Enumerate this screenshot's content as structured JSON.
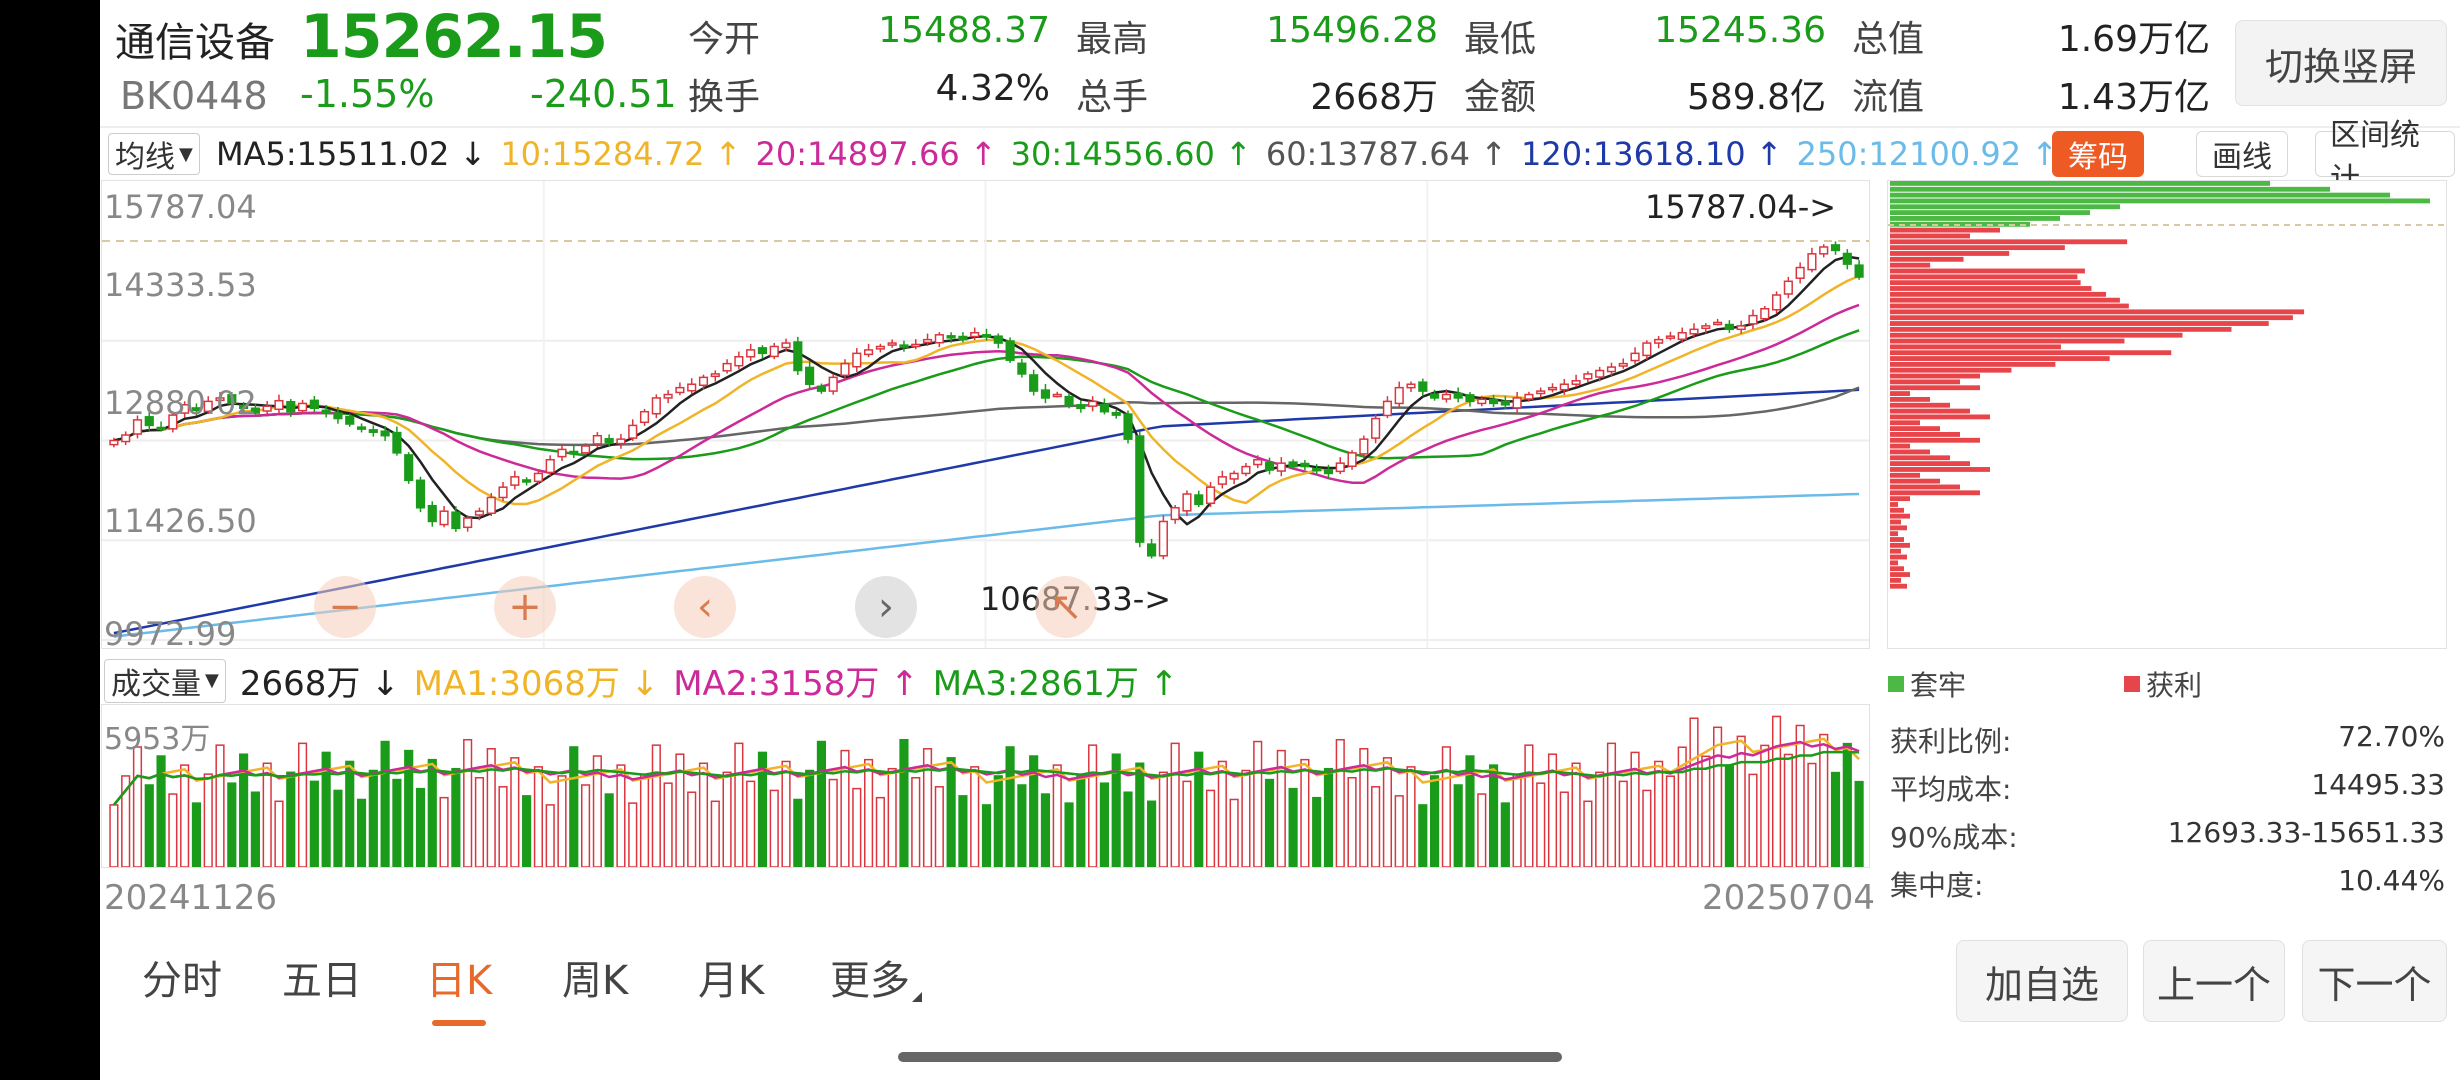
{
  "stock": {
    "name": "通信设备",
    "code": "BK0448",
    "price": "15262.15",
    "change_pct": "-1.55%",
    "change": "-240.51"
  },
  "quotes": [
    {
      "label": "今开",
      "value": "15488.37"
    },
    {
      "label": "最高",
      "value": "15496.28"
    },
    {
      "label": "最低",
      "value": "15245.36"
    },
    {
      "label": "总值",
      "value": "1.69万亿"
    },
    {
      "label": "换手",
      "value": "4.32%"
    },
    {
      "label": "总手",
      "value": "2668万"
    },
    {
      "label": "金额",
      "value": "589.8亿"
    },
    {
      "label": "流值",
      "value": "1.43万亿"
    }
  ],
  "switch_label": "切换竖屏",
  "ma_bar": {
    "select_label": "均线",
    "items": [
      {
        "text": "MA5:15511.02 ↓",
        "color": "#222222"
      },
      {
        "text": "10:15284.72 ↑",
        "color": "#f0b429"
      },
      {
        "text": "20:14897.66 ↑",
        "color": "#cc2a99"
      },
      {
        "text": "30:14556.60 ↑",
        "color": "#1a9b1a"
      },
      {
        "text": "60:13787.64 ↑",
        "color": "#555555"
      },
      {
        "text": "120:13618.10 ↑",
        "color": "#1f3aa8"
      },
      {
        "text": "250:12100.92 ↑",
        "color": "#6bbbe8"
      }
    ]
  },
  "tools": {
    "chips": "筹码",
    "draw": "画线",
    "range": "区间统计"
  },
  "k_axis": [
    "15787.04",
    "14333.53",
    "12880.02",
    "11426.50",
    "9972.99"
  ],
  "annotations": {
    "high": "15787.04->",
    "low": "10687.33->"
  },
  "volume_bar": {
    "select_label": "成交量",
    "items": [
      {
        "text": "2668万 ↓",
        "color": "#222222"
      },
      {
        "text": "MA1:3068万 ↓",
        "color": "#f0b429"
      },
      {
        "text": "MA2:3158万 ↑",
        "color": "#cc2a99"
      },
      {
        "text": "MA3:2861万 ↑",
        "color": "#1a9b1a"
      }
    ],
    "axis_top": "5953万"
  },
  "dates": {
    "start": "20241126",
    "end": "20250704"
  },
  "chip": {
    "legend_trapped": "套牢",
    "legend_profit": "获利",
    "stats": [
      {
        "label": "获利比例:",
        "value": "72.70%"
      },
      {
        "label": "平均成本:",
        "value": "14495.33"
      },
      {
        "label": "90%成本:",
        "value": "12693.33-15651.33"
      },
      {
        "label": "集中度:",
        "value": "10.44%"
      }
    ]
  },
  "tabs": [
    "分时",
    "五日",
    "日K",
    "周K",
    "月K",
    "更多"
  ],
  "active_tab": "日K",
  "buttons": {
    "add": "加自选",
    "prev": "上一个",
    "next": "下一个"
  },
  "chart_data": {
    "type": "candlestick",
    "period": "daily",
    "x_start": "20241126",
    "x_end": "20250704",
    "y_ticks": [
      15787.04,
      14333.53,
      12880.02,
      11426.5,
      9972.99
    ],
    "ylim": [
      9972.99,
      15787.04
    ],
    "high_marker": 15787.04,
    "low_marker": 10687.33,
    "last_close": 15262.15,
    "ma_last": {
      "MA5": 15511.02,
      "MA10": 15284.72,
      "MA20": 14897.66,
      "MA30": 14556.6,
      "MA60": 13787.64,
      "MA120": 13618.1,
      "MA250": 12100.92
    },
    "closes": [
      12880,
      12960,
      13180,
      13100,
      13050,
      13250,
      13400,
      13320,
      13450,
      13500,
      13420,
      13350,
      13280,
      13380,
      13460,
      13300,
      13420,
      13350,
      13280,
      13200,
      13120,
      13050,
      13000,
      12950,
      12700,
      12300,
      11900,
      11700,
      11850,
      11600,
      11750,
      11850,
      12050,
      12200,
      12350,
      12300,
      12400,
      12600,
      12750,
      12700,
      12800,
      12950,
      12850,
      12900,
      13100,
      13300,
      13500,
      13550,
      13650,
      13700,
      13800,
      13850,
      14000,
      14100,
      14200,
      14150,
      14250,
      14300,
      13900,
      13700,
      13600,
      13800,
      14000,
      14150,
      14200,
      14250,
      14300,
      14250,
      14280,
      14350,
      14420,
      14380,
      14350,
      14450,
      14400,
      14300,
      14050,
      13850,
      13600,
      13500,
      13550,
      13400,
      13350,
      13450,
      13300,
      13250,
      12900,
      11400,
      11200,
      11700,
      11900,
      12100,
      11950,
      12200,
      12350,
      12400,
      12500,
      12600,
      12450,
      12550,
      12500,
      12500,
      12450,
      12400,
      12550,
      12700,
      12900,
      13200,
      13450,
      13650,
      13700,
      13600,
      13500,
      13550,
      13500,
      13450,
      13480,
      13420,
      13400,
      13500,
      13550,
      13600,
      13650,
      13700,
      13750,
      13850,
      13900,
      13950,
      14000,
      14150,
      14300,
      14350,
      14400,
      14450,
      14500,
      14550,
      14600,
      14500,
      14550,
      14700,
      14800,
      15000,
      15200,
      15400,
      15600,
      15700,
      15650,
      15450,
      15262.15
    ],
    "volume_max": 5953,
    "volume_unit": "万"
  }
}
